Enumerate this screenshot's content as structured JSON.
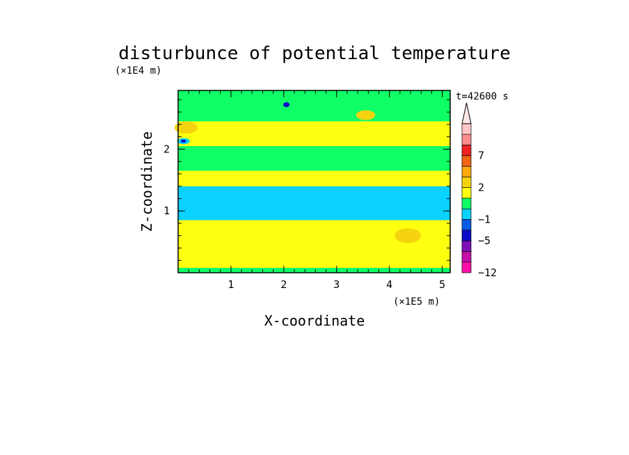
{
  "chart_data": {
    "type": "heatmap",
    "title": "disturbunce of potential temperature",
    "time_label": "t=42600 s",
    "xlabel": "X-coordinate",
    "ylabel": "Z-coordinate",
    "x_scale_label": "(×1E5 m)",
    "y_scale_label": "(×1E4 m)",
    "xlim": [
      0,
      5.15
    ],
    "ylim": [
      0,
      2.95
    ],
    "x_ticks": [
      1,
      2,
      3,
      4,
      5
    ],
    "y_ticks": [
      1,
      2
    ],
    "x_minor_step": 0.2,
    "y_minor_step": 0.2,
    "colorbar": {
      "levels": [
        -12,
        -9,
        -7,
        -5,
        -3,
        -1,
        0,
        1,
        2,
        4,
        5,
        7,
        9,
        12
      ],
      "colors": [
        "#ff0fa8",
        "#c20faa",
        "#7f0fb8",
        "#0a0ac9",
        "#0a5ae6",
        "#0ad2ff",
        "#0fff66",
        "#ffff10",
        "#f5d40f",
        "#ffa80f",
        "#f06414",
        "#ee2222",
        "#ff8c8c",
        "#ffc6c6"
      ],
      "tick_labels": [
        {
          "value": 7,
          "label": "7"
        },
        {
          "value": 2,
          "label": "2"
        },
        {
          "value": -1,
          "label": "−1"
        },
        {
          "value": -5,
          "label": "−5"
        },
        {
          "value": -12,
          "label": "−12"
        }
      ],
      "extend": "max",
      "extend_color": "#ffe6e6"
    },
    "bands": [
      {
        "z": [
          0.0,
          0.08
        ],
        "value": 0.5
      },
      {
        "z": [
          0.08,
          0.55
        ],
        "value": 1.5
      },
      {
        "z": [
          0.55,
          0.85
        ],
        "value": 1.2
      },
      {
        "z": [
          0.85,
          1.4
        ],
        "value": -0.5
      },
      {
        "z": [
          1.4,
          1.65
        ],
        "value": 1.2
      },
      {
        "z": [
          1.65,
          2.05
        ],
        "value": 0.8
      },
      {
        "z": [
          2.05,
          2.45
        ],
        "value": 1.5
      },
      {
        "z": [
          2.45,
          2.95
        ],
        "value": 0.4
      }
    ],
    "blobs": [
      {
        "x": 0.15,
        "z": 2.35,
        "rx": 0.22,
        "rz": 0.1,
        "value": 3
      },
      {
        "x": 0.1,
        "z": 2.13,
        "rx": 0.12,
        "rz": 0.05,
        "value": -0.5
      },
      {
        "x": 0.1,
        "z": 2.13,
        "rx": 0.05,
        "rz": 0.025,
        "value": -4
      },
      {
        "x": 2.05,
        "z": 2.72,
        "rx": 0.06,
        "rz": 0.04,
        "value": -4
      },
      {
        "x": 4.35,
        "z": 0.6,
        "rx": 0.25,
        "rz": 0.12,
        "value": 3
      },
      {
        "x": 3.55,
        "z": 2.55,
        "rx": 0.18,
        "rz": 0.08,
        "value": 3
      }
    ],
    "grid": false
  }
}
